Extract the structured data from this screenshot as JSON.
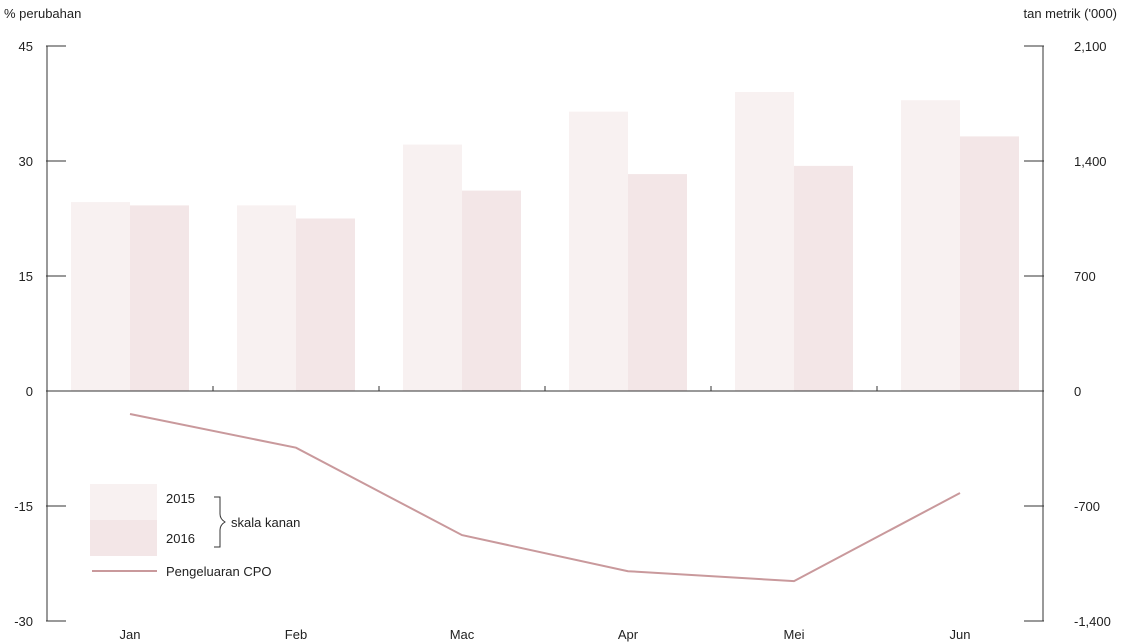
{
  "chart_data": {
    "type": "bar",
    "categories": [
      "Jan",
      "Feb",
      "Mac",
      "Apr",
      "Mei",
      "Jun"
    ],
    "left_axis": {
      "label": "% perubahan",
      "ylim": [
        -30,
        45
      ],
      "ticks": [
        45,
        30,
        15,
        0,
        -15,
        -30
      ],
      "tick_labels": [
        "45",
        "30",
        "15",
        "0",
        "-15",
        "-30"
      ]
    },
    "right_axis": {
      "label": "tan metrik ('000)",
      "ylim": [
        -1400,
        2100
      ],
      "ticks": [
        2100,
        1400,
        700,
        0,
        -700,
        -1400
      ],
      "tick_labels": [
        "2,100",
        "1,400",
        "700",
        "0",
        "-700",
        "-1,400"
      ]
    },
    "series": [
      {
        "name": "2015",
        "type": "bar",
        "axis": "right",
        "color": "#f8f1f1",
        "values": [
          1150,
          1130,
          1500,
          1700,
          1820,
          1770
        ]
      },
      {
        "name": "2016",
        "type": "bar",
        "axis": "right",
        "color": "#f3e6e7",
        "values": [
          1130,
          1050,
          1220,
          1320,
          1370,
          1550
        ]
      },
      {
        "name": "Pengeluaran CPO",
        "type": "line",
        "axis": "left",
        "color": "#c9999c",
        "values": [
          -3,
          -7.4,
          -18.8,
          -23.5,
          -24.8,
          -13.3
        ]
      }
    ],
    "legend": {
      "placement": "bottom-left",
      "bracket_label": "skala kanan",
      "items": [
        {
          "label": "2015",
          "color": "#f8f1f1",
          "kind": "box"
        },
        {
          "label": "2016",
          "color": "#f3e6e7",
          "kind": "box"
        },
        {
          "label": "Pengeluaran CPO",
          "color": "#c9999c",
          "kind": "line"
        }
      ]
    },
    "grid": false
  }
}
